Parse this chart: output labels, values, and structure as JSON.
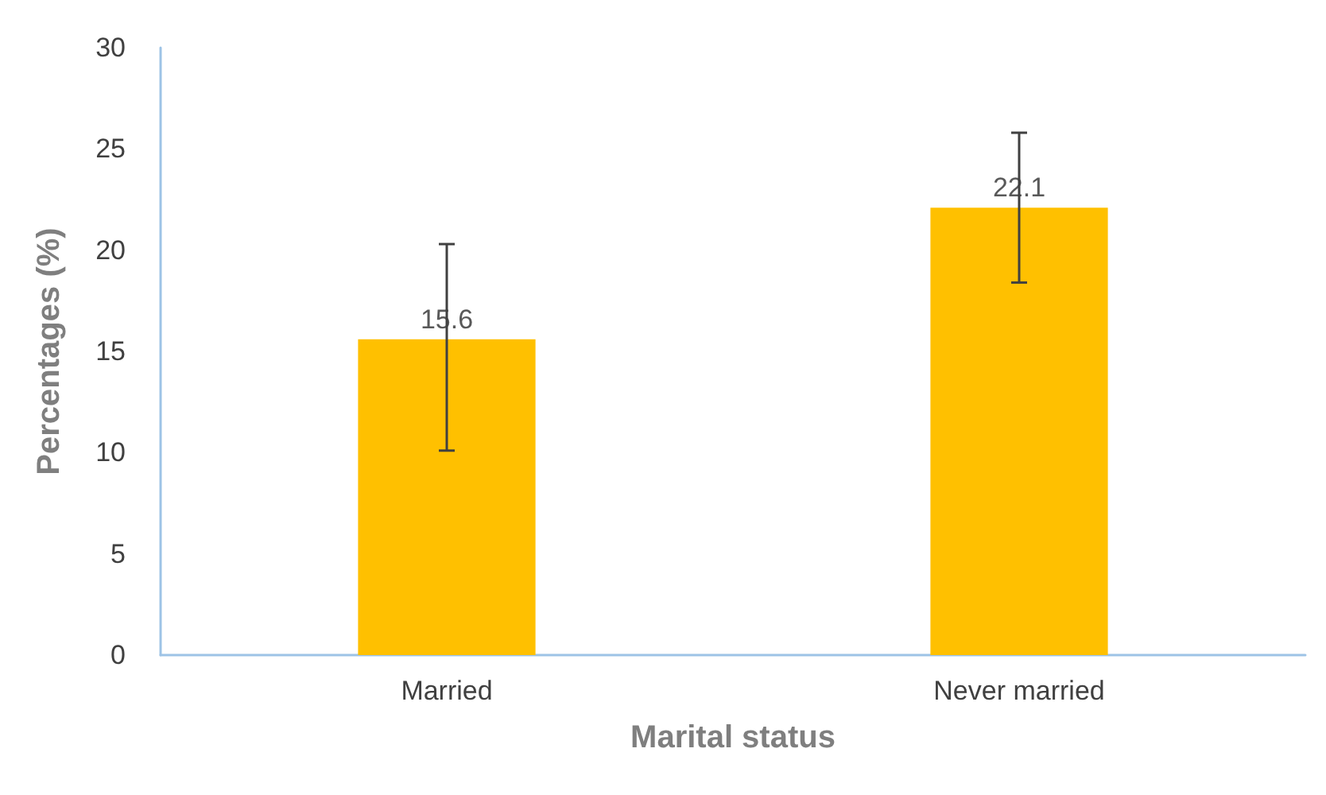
{
  "chart_data": {
    "type": "bar",
    "xlabel": "Marital status",
    "ylabel": "Percentages (%)",
    "categories": [
      "Married",
      "Never married"
    ],
    "values": [
      15.6,
      22.1
    ],
    "color": "#ffc000",
    "errors": [
      [
        10.1,
        20.3
      ],
      [
        18.4,
        25.8
      ]
    ],
    "data_labels": true,
    "ylim": [
      0,
      30
    ],
    "yticks": [
      0,
      5,
      10,
      15,
      20,
      25,
      30
    ],
    "grid": false
  }
}
